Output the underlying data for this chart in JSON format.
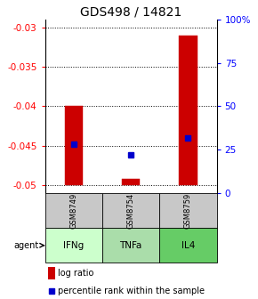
{
  "title": "GDS498 / 14821",
  "samples": [
    "GSM8749",
    "GSM8754",
    "GSM8759"
  ],
  "agents": [
    "IFNg",
    "TNFa",
    "IL4"
  ],
  "log_ratios": [
    -0.04,
    -0.0492,
    -0.031
  ],
  "percentile_ranks_pct": [
    28,
    22,
    32
  ],
  "bar_base": -0.05,
  "ylim": [
    -0.051,
    -0.029
  ],
  "yticks_left": [
    -0.03,
    -0.035,
    -0.04,
    -0.045,
    -0.05
  ],
  "yticks_right_pct": [
    100,
    75,
    50,
    25,
    0
  ],
  "bar_color": "#cc0000",
  "dot_color": "#0000cc",
  "agent_colors": {
    "IFNg": "#ccffcc",
    "TNFa": "#aaddaa",
    "IL4": "#66cc66"
  },
  "sample_bg": "#c8c8c8",
  "title_fontsize": 10,
  "tick_fontsize": 7.5,
  "legend_fontsize": 7
}
